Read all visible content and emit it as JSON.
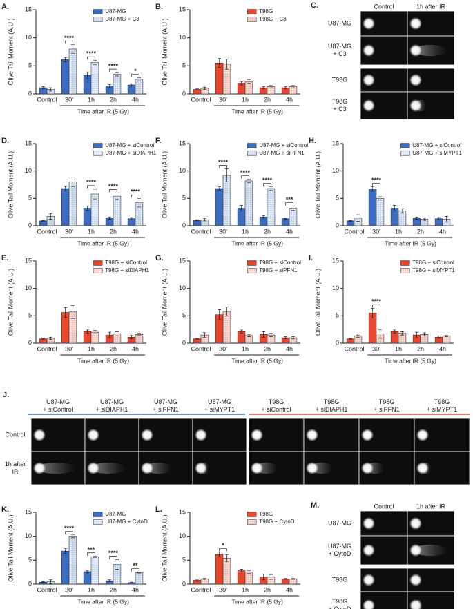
{
  "chart_data": [
    {
      "type": "bar",
      "label": "A.",
      "ylabel": "Olive Tail Moment (A.U.)",
      "xlabel": "Time after IR (5 Gy)",
      "categories": [
        "Control",
        "30'",
        "1h",
        "2h",
        "4h"
      ],
      "ylim": [
        0,
        15
      ],
      "yticks": [
        0,
        5,
        10,
        15
      ],
      "series": [
        {
          "name": "U87-MG",
          "color": "#3b6cc0",
          "hatch": false,
          "values": [
            1.1,
            6.1,
            3.3,
            1.4,
            1.6
          ],
          "errors": [
            0.2,
            0.4,
            0.6,
            0.3,
            0.2
          ]
        },
        {
          "name": "U87-MG + C3",
          "color": "#c7d6ef",
          "hatch": true,
          "values": [
            0.8,
            8.0,
            5.6,
            3.5,
            2.6
          ],
          "errors": [
            0.3,
            0.8,
            0.4,
            0.3,
            0.3
          ]
        }
      ],
      "significance": [
        null,
        "****",
        "****",
        "****",
        "*"
      ]
    },
    {
      "type": "bar",
      "label": "B.",
      "ylabel": "Olive Tail Moment (A.U.)",
      "xlabel": "Time after IR (5 Gy)",
      "categories": [
        "Control",
        "30'",
        "1h",
        "2h",
        "4h"
      ],
      "ylim": [
        0,
        15
      ],
      "yticks": [
        0,
        5,
        10,
        15
      ],
      "series": [
        {
          "name": "T98G",
          "color": "#e8472f",
          "hatch": false,
          "values": [
            0.8,
            5.5,
            1.9,
            1.1,
            1.1
          ],
          "errors": [
            0.1,
            0.8,
            0.3,
            0.2,
            0.2
          ]
        },
        {
          "name": "T98G + C3",
          "color": "#f6c6bc",
          "hatch": true,
          "values": [
            1.0,
            5.3,
            2.2,
            1.3,
            1.3
          ],
          "errors": [
            0.2,
            0.9,
            0.3,
            0.2,
            0.2
          ]
        }
      ]
    },
    {
      "type": "bar",
      "label": "D.",
      "ylabel": "Olive Tail Moment (A.U.)",
      "xlabel": "Time after IR (5 Gy)",
      "categories": [
        "Control",
        "30'",
        "1h",
        "2h",
        "4h"
      ],
      "ylim": [
        0,
        15
      ],
      "yticks": [
        0,
        5,
        10,
        15
      ],
      "series": [
        {
          "name": "U87-MG + siControl",
          "color": "#3b6cc0",
          "hatch": false,
          "values": [
            0.9,
            6.8,
            3.2,
            1.4,
            1.3
          ],
          "errors": [
            0.1,
            0.4,
            0.4,
            0.2,
            0.2
          ]
        },
        {
          "name": "U87-MG + siDIAPH1",
          "color": "#c7d6ef",
          "hatch": true,
          "values": [
            1.7,
            8.0,
            5.8,
            5.4,
            4.2
          ],
          "errors": [
            0.5,
            0.9,
            0.9,
            0.6,
            0.8
          ]
        }
      ],
      "significance": [
        null,
        null,
        "****",
        "****",
        "****"
      ]
    },
    {
      "type": "bar",
      "label": "F.",
      "ylabel": "Olive Tail Moment (A.U.)",
      "xlabel": "Time after IR (5 Gy)",
      "categories": [
        "Control",
        "30'",
        "1h",
        "2h",
        "4h"
      ],
      "ylim": [
        0,
        15
      ],
      "yticks": [
        0,
        5,
        10,
        15
      ],
      "series": [
        {
          "name": "U87-MG + siControl",
          "color": "#3b6cc0",
          "hatch": false,
          "values": [
            1.0,
            6.8,
            3.2,
            1.6,
            1.3
          ],
          "errors": [
            0.1,
            0.3,
            0.5,
            0.2,
            0.1
          ]
        },
        {
          "name": "U87-MG + siPFN1",
          "color": "#c7d6ef",
          "hatch": true,
          "values": [
            1.1,
            9.2,
            8.2,
            6.8,
            3.2
          ],
          "errors": [
            0.2,
            1.2,
            0.3,
            0.3,
            0.4
          ]
        }
      ],
      "significance": [
        null,
        "****",
        "****",
        "****",
        "***"
      ]
    },
    {
      "type": "bar",
      "label": "H.",
      "ylabel": "Olive Tail Moment (A.U.)",
      "xlabel": "Time after IR (5 Gy)",
      "categories": [
        "Control",
        "30'",
        "1h",
        "2h",
        "4h"
      ],
      "ylim": [
        0,
        15
      ],
      "yticks": [
        0,
        5,
        10,
        15
      ],
      "series": [
        {
          "name": "U87-MG + siControl",
          "color": "#3b6cc0",
          "hatch": false,
          "values": [
            0.9,
            6.7,
            3.2,
            1.4,
            1.3
          ],
          "errors": [
            0.1,
            0.4,
            0.5,
            0.2,
            0.2
          ]
        },
        {
          "name": "U87-MG + siMYPT1",
          "color": "#c7d6ef",
          "hatch": true,
          "values": [
            1.4,
            5.0,
            2.7,
            1.2,
            1.2
          ],
          "errors": [
            0.6,
            0.3,
            0.4,
            0.2,
            0.5
          ]
        }
      ],
      "significance": [
        null,
        "****",
        null,
        null,
        null
      ]
    },
    {
      "type": "bar",
      "label": "E.",
      "ylabel": "Olive Tail Moment (A.U.)",
      "xlabel": "Time after IR (5 Gy)",
      "categories": [
        "Control",
        "30'",
        "1h",
        "2h",
        "4h"
      ],
      "ylim": [
        0,
        15
      ],
      "yticks": [
        0,
        5,
        10,
        15
      ],
      "series": [
        {
          "name": "T98G + siControl",
          "color": "#e8472f",
          "hatch": false,
          "values": [
            0.8,
            5.6,
            2.1,
            1.5,
            1.1
          ],
          "errors": [
            0.1,
            0.9,
            0.3,
            0.5,
            0.3
          ]
        },
        {
          "name": "T98G + siDIAPH1",
          "color": "#f6c6bc",
          "hatch": true,
          "values": [
            0.9,
            5.7,
            2.0,
            1.7,
            1.6
          ],
          "errors": [
            0.2,
            1.2,
            0.3,
            0.4,
            0.2
          ]
        }
      ]
    },
    {
      "type": "bar",
      "label": "G.",
      "ylabel": "Olive Tail Moment (A.U.)",
      "xlabel": "Time after IR (5 Gy)",
      "categories": [
        "Control",
        "30'",
        "1h",
        "2h",
        "4h"
      ],
      "ylim": [
        0,
        15
      ],
      "yticks": [
        0,
        5,
        10,
        15
      ],
      "series": [
        {
          "name": "T98G + siControl",
          "color": "#e8472f",
          "hatch": false,
          "values": [
            0.8,
            5.2,
            2.1,
            1.6,
            1.0
          ],
          "errors": [
            0.1,
            0.9,
            0.3,
            0.5,
            0.2
          ]
        },
        {
          "name": "T98G + siPFN1",
          "color": "#f6c6bc",
          "hatch": true,
          "values": [
            1.5,
            5.8,
            1.4,
            1.5,
            1.0
          ],
          "errors": [
            0.4,
            0.8,
            0.2,
            0.3,
            0.2
          ]
        }
      ]
    },
    {
      "type": "bar",
      "label": "I.",
      "ylabel": "Olive Tail Moment (A.U.)",
      "xlabel": "Time after IR (5 Gy)",
      "categories": [
        "Control",
        "30'",
        "1h",
        "2h",
        "4h"
      ],
      "ylim": [
        0,
        15
      ],
      "yticks": [
        0,
        5,
        10,
        15
      ],
      "series": [
        {
          "name": "T98G + siControl",
          "color": "#e8472f",
          "hatch": false,
          "values": [
            0.8,
            5.5,
            2.1,
            1.5,
            1.1
          ],
          "errors": [
            0.1,
            0.9,
            0.3,
            0.5,
            0.2
          ]
        },
        {
          "name": "T98G + siMYPT1",
          "color": "#f6c6bc",
          "hatch": true,
          "values": [
            1.3,
            1.7,
            1.8,
            1.6,
            1.3
          ],
          "errors": [
            0.2,
            0.8,
            0.3,
            0.3,
            0.1
          ]
        }
      ],
      "significance": [
        null,
        "****",
        null,
        null,
        null
      ]
    },
    {
      "type": "bar",
      "label": "K.",
      "ylabel": "Olive Tail Moment (A.U.)",
      "xlabel": "Time after IR (5 Gy)",
      "categories": [
        "Control",
        "30'",
        "1h",
        "2h",
        "4h"
      ],
      "ylim": [
        0,
        15
      ],
      "yticks": [
        0,
        5,
        10,
        15
      ],
      "series": [
        {
          "name": "U87-MG",
          "color": "#3b6cc0",
          "hatch": false,
          "values": [
            0.4,
            6.9,
            2.6,
            0.7,
            0.3
          ],
          "errors": [
            0.1,
            0.5,
            0.2,
            0.2,
            0.1
          ]
        },
        {
          "name": "U87-MG + CytoD",
          "color": "#c7d6ef",
          "hatch": true,
          "values": [
            0.5,
            10.0,
            5.7,
            4.1,
            2.4
          ],
          "errors": [
            0.4,
            0.3,
            0.1,
            1.0,
            0.1
          ]
        }
      ],
      "significance": [
        null,
        "****",
        "***",
        "****",
        "**"
      ]
    },
    {
      "type": "bar",
      "label": "L.",
      "ylabel": "Olive Tail Moment (A.U.)",
      "xlabel": "Time after IR (5 Gy)",
      "categories": [
        "Control",
        "30'",
        "1h",
        "2h",
        "4h"
      ],
      "ylim": [
        0,
        15
      ],
      "yticks": [
        0,
        5,
        10,
        15
      ],
      "series": [
        {
          "name": "T98G",
          "color": "#e8472f",
          "hatch": false,
          "values": [
            0.8,
            6.2,
            2.8,
            1.5,
            1.1
          ],
          "errors": [
            0.2,
            0.5,
            0.3,
            0.6,
            0.1
          ]
        },
        {
          "name": "T98G + CytoD",
          "color": "#f6c6bc",
          "hatch": true,
          "values": [
            1.1,
            5.4,
            2.5,
            1.5,
            1.1
          ],
          "errors": [
            0.1,
            0.7,
            0.3,
            0.5,
            0.1
          ]
        }
      ],
      "significance": [
        null,
        "*",
        null,
        null,
        null
      ]
    }
  ],
  "image_panels": [
    {
      "label": "C.",
      "columns": [
        "Control",
        "1h after IR"
      ],
      "rows": [
        [
          "U87-MG"
        ],
        [
          "U87-MG",
          "+ C3"
        ],
        [
          "T98G"
        ],
        [
          "T98G",
          "+ C3"
        ]
      ]
    },
    {
      "label": "J.",
      "columns": [
        [
          "U87-MG",
          "+ siControl"
        ],
        [
          "U87-MG",
          "+ siDIAPH1"
        ],
        [
          "U87-MG",
          "+ siPFN1"
        ],
        [
          "U87-MG",
          "+ siMYPT1"
        ],
        [
          "T98G",
          "+ siControl"
        ],
        [
          "T98G",
          "+ siDIAPH1"
        ],
        [
          "T98G",
          "+ siPFN1"
        ],
        [
          "T98G",
          "+ siMYPT1"
        ]
      ],
      "rows": [
        [
          "Control"
        ],
        [
          "1h after",
          "IR"
        ]
      ]
    },
    {
      "label": "M.",
      "columns": [
        "Control",
        "1h after IR"
      ],
      "rows": [
        [
          "U87-MG"
        ],
        [
          "U87-MG",
          "+ CytoD"
        ],
        [
          "T98G"
        ],
        [
          "T98G",
          "+ CytoD"
        ]
      ]
    }
  ]
}
